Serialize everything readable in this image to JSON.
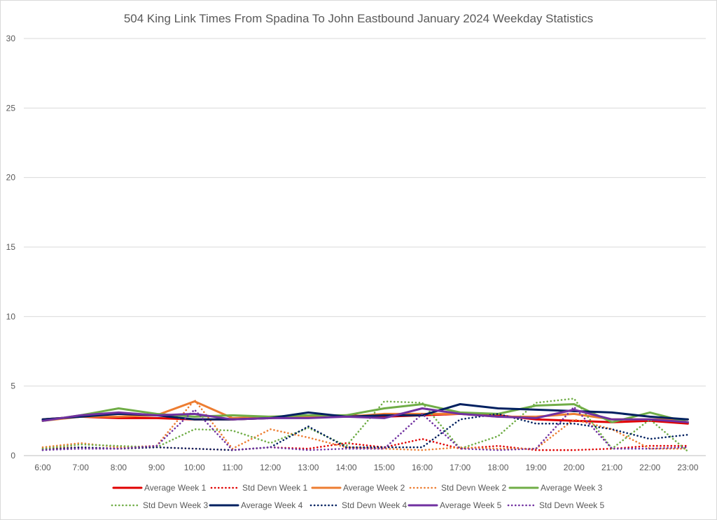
{
  "chart_data": {
    "type": "line",
    "title": "504 King Link Times From Spadina To John Eastbound January 2024 Weekday Statistics",
    "xlabel": "",
    "ylabel": "",
    "ylim": [
      0,
      30
    ],
    "yticks": [
      0,
      5,
      10,
      15,
      20,
      25,
      30
    ],
    "grid": true,
    "legend_position": "bottom",
    "categories": [
      "6:00",
      "7:00",
      "8:00",
      "9:00",
      "10:00",
      "11:00",
      "12:00",
      "13:00",
      "14:00",
      "15:00",
      "16:00",
      "17:00",
      "18:00",
      "19:00",
      "20:00",
      "21:00",
      "22:00",
      "23:00"
    ],
    "series": [
      {
        "name": "Average Week 1",
        "style": "solid",
        "color": "#e00000",
        "values": [
          2.6,
          2.8,
          2.7,
          2.7,
          2.6,
          2.6,
          2.7,
          2.8,
          2.9,
          2.8,
          2.9,
          3.0,
          2.9,
          2.6,
          2.5,
          2.4,
          2.5,
          2.3
        ]
      },
      {
        "name": "Std Devn Week 1",
        "style": "dotted",
        "color": "#e00000",
        "values": [
          0.5,
          0.6,
          0.5,
          0.6,
          0.5,
          0.4,
          0.6,
          0.5,
          0.9,
          0.6,
          1.2,
          0.5,
          0.7,
          0.4,
          0.4,
          0.5,
          0.7,
          0.7
        ]
      },
      {
        "name": "Average Week 2",
        "style": "solid",
        "color": "#ed7d31",
        "values": [
          2.5,
          2.8,
          2.8,
          2.9,
          3.9,
          2.7,
          2.8,
          2.8,
          2.8,
          3.0,
          3.0,
          3.0,
          2.8,
          2.8,
          3.0,
          2.6,
          2.6,
          2.6
        ]
      },
      {
        "name": "Std Devn Week 2",
        "style": "dotted",
        "color": "#ed7d31",
        "values": [
          0.6,
          0.9,
          0.6,
          0.7,
          4.0,
          0.5,
          1.9,
          1.3,
          0.6,
          0.5,
          0.4,
          0.6,
          0.5,
          0.5,
          2.6,
          1.9,
          0.5,
          0.5
        ]
      },
      {
        "name": "Average Week 3",
        "style": "solid",
        "color": "#70ad47",
        "values": [
          2.5,
          2.9,
          3.4,
          3.0,
          2.8,
          2.9,
          2.8,
          2.9,
          2.9,
          3.4,
          3.7,
          3.1,
          3.0,
          3.6,
          3.7,
          2.4,
          3.1,
          2.4
        ]
      },
      {
        "name": "Std Devn Week 3",
        "style": "dotted",
        "color": "#70ad47",
        "values": [
          0.5,
          0.8,
          0.7,
          0.6,
          1.9,
          1.8,
          0.9,
          2.0,
          0.7,
          3.9,
          3.8,
          0.5,
          1.4,
          3.8,
          4.1,
          0.5,
          2.6,
          0.3
        ]
      },
      {
        "name": "Average Week 4",
        "style": "solid",
        "color": "#002060",
        "values": [
          2.6,
          2.8,
          3.0,
          2.9,
          2.6,
          2.6,
          2.7,
          3.1,
          2.8,
          2.9,
          2.9,
          3.7,
          3.4,
          3.3,
          3.2,
          3.1,
          2.8,
          2.6
        ]
      },
      {
        "name": "Std Devn Week 4",
        "style": "dotted",
        "color": "#002060",
        "values": [
          0.4,
          0.6,
          0.5,
          0.6,
          0.5,
          0.4,
          0.6,
          2.1,
          0.6,
          0.6,
          0.6,
          2.6,
          3.0,
          2.3,
          2.3,
          1.9,
          1.2,
          1.5
        ]
      },
      {
        "name": "Average Week 5",
        "style": "solid",
        "color": "#7030a0",
        "values": [
          2.5,
          2.9,
          3.1,
          2.9,
          3.0,
          2.6,
          2.7,
          2.7,
          2.8,
          2.7,
          3.4,
          3.0,
          2.8,
          2.7,
          3.3,
          2.6,
          2.6,
          2.4
        ]
      },
      {
        "name": "Std Devn Week 5",
        "style": "dotted",
        "color": "#7030a0",
        "values": [
          0.4,
          0.5,
          0.5,
          0.7,
          3.3,
          0.4,
          0.6,
          0.4,
          0.5,
          0.5,
          3.0,
          0.5,
          0.4,
          0.5,
          3.5,
          0.5,
          0.5,
          0.6
        ]
      }
    ]
  }
}
